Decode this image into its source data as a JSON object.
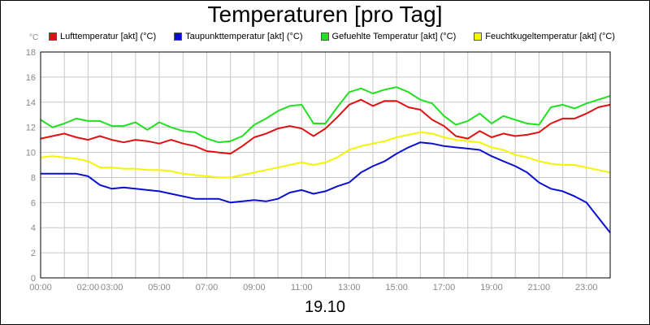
{
  "title": "Temperaturen [pro Tag]",
  "unit": "°C",
  "date": "19.10",
  "colors": {
    "lufttemperatur": "#e01010",
    "taupunkt": "#0a10d0",
    "gefuehlt": "#20e020",
    "feuchtkugel": "#f5f500",
    "grid": "#c8c8c8",
    "axis_text": "#888888"
  },
  "chart_data": {
    "type": "line",
    "title": "Temperaturen [pro Tag]",
    "xlabel": "19.10",
    "ylabel": "°C",
    "ylim": [
      0,
      18
    ],
    "xlim": [
      0,
      24
    ],
    "grid": true,
    "legend_position": "top",
    "yticks": [
      "0",
      "2",
      "4",
      "6",
      "8",
      "10",
      "12",
      "14",
      "16",
      "18"
    ],
    "xticks": [
      {
        "x": 0,
        "label": "00:00"
      },
      {
        "x": 2,
        "label": "02:00"
      },
      {
        "x": 3,
        "label": "03:00"
      },
      {
        "x": 5,
        "label": "05:00"
      },
      {
        "x": 7,
        "label": "07:00"
      },
      {
        "x": 9,
        "label": "09:00"
      },
      {
        "x": 11,
        "label": "11:00"
      },
      {
        "x": 13,
        "label": "13:00"
      },
      {
        "x": 15,
        "label": "15:00"
      },
      {
        "x": 17,
        "label": "17:00"
      },
      {
        "x": 19,
        "label": "19:00"
      },
      {
        "x": 21,
        "label": "21:00"
      },
      {
        "x": 23,
        "label": "23:00"
      }
    ],
    "x": [
      0,
      0.5,
      1,
      1.5,
      2,
      2.5,
      3,
      3.5,
      4,
      4.5,
      5,
      5.5,
      6,
      6.5,
      7,
      7.5,
      8,
      8.5,
      9,
      9.5,
      10,
      10.5,
      11,
      11.5,
      12,
      12.5,
      13,
      13.5,
      14,
      14.5,
      15,
      15.5,
      16,
      16.5,
      17,
      17.5,
      18,
      18.5,
      19,
      19.5,
      20,
      20.5,
      21,
      21.5,
      22,
      22.5,
      23,
      23.5,
      24
    ],
    "series": [
      {
        "name": "Lufttemperatur [akt] (°C)",
        "color": "#e01010",
        "values": [
          11.1,
          11.3,
          11.5,
          11.2,
          11.0,
          11.3,
          11.0,
          10.8,
          11.0,
          10.9,
          10.7,
          11.0,
          10.7,
          10.5,
          10.1,
          10.0,
          9.9,
          10.5,
          11.2,
          11.5,
          11.9,
          12.1,
          11.9,
          11.3,
          11.9,
          12.8,
          13.8,
          14.2,
          13.7,
          14.1,
          14.1,
          13.6,
          13.4,
          12.6,
          12.1,
          11.3,
          11.1,
          11.7,
          11.2,
          11.5,
          11.3,
          11.4,
          11.6,
          12.3,
          12.7,
          12.7,
          13.1,
          13.6,
          13.8
        ]
      },
      {
        "name": "Taupunkttemperatur [akt] (°C)",
        "color": "#0a10d0",
        "values": [
          8.3,
          8.3,
          8.3,
          8.3,
          8.1,
          7.4,
          7.1,
          7.2,
          7.1,
          7.0,
          6.9,
          6.7,
          6.5,
          6.3,
          6.3,
          6.3,
          6.0,
          6.1,
          6.2,
          6.1,
          6.3,
          6.8,
          7.0,
          6.7,
          6.9,
          7.3,
          7.6,
          8.4,
          8.9,
          9.3,
          9.9,
          10.4,
          10.8,
          10.7,
          10.5,
          10.4,
          10.3,
          10.2,
          9.7,
          9.3,
          8.9,
          8.4,
          7.6,
          7.1,
          6.9,
          6.5,
          6.0,
          4.8,
          3.6
        ]
      },
      {
        "name": "Gefuehlte Temperatur [akt] (°C)",
        "color": "#20e020",
        "values": [
          12.6,
          12.0,
          12.3,
          12.7,
          12.5,
          12.5,
          12.1,
          12.1,
          12.4,
          11.8,
          12.4,
          12.0,
          11.7,
          11.6,
          11.1,
          10.8,
          10.9,
          11.3,
          12.2,
          12.7,
          13.3,
          13.7,
          13.8,
          12.3,
          12.3,
          13.6,
          14.8,
          15.1,
          14.7,
          15.0,
          15.2,
          14.8,
          14.2,
          13.9,
          12.9,
          12.2,
          12.5,
          13.1,
          12.3,
          12.9,
          12.6,
          12.3,
          12.2,
          13.6,
          13.8,
          13.5,
          13.9,
          14.2,
          14.5
        ]
      },
      {
        "name": "Feuchtkugeltemperatur [akt] (°C)",
        "color": "#f5f500",
        "values": [
          9.6,
          9.7,
          9.6,
          9.5,
          9.3,
          8.8,
          8.8,
          8.7,
          8.7,
          8.6,
          8.6,
          8.5,
          8.3,
          8.2,
          8.1,
          8.0,
          8.0,
          8.2,
          8.4,
          8.6,
          8.8,
          9.0,
          9.2,
          9.0,
          9.2,
          9.6,
          10.2,
          10.5,
          10.7,
          10.9,
          11.2,
          11.4,
          11.6,
          11.5,
          11.2,
          11.0,
          10.9,
          10.8,
          10.4,
          10.2,
          9.8,
          9.6,
          9.3,
          9.1,
          9.0,
          9.0,
          8.8,
          8.6,
          8.4
        ]
      }
    ]
  }
}
